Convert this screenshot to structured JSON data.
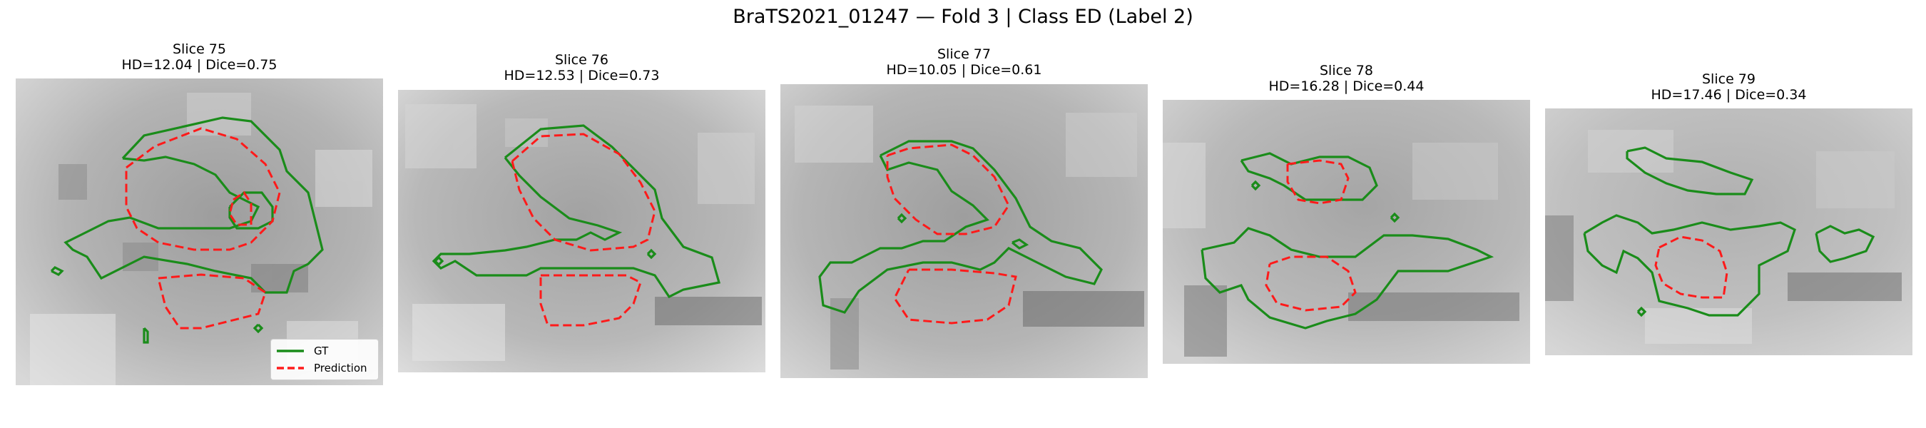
{
  "figure": {
    "title": "BraTS2021_01247 — Fold 3 | Class ED (Label 2)"
  },
  "legend": {
    "gt_label": "GT",
    "pred_label": "Prediction"
  },
  "colors": {
    "gt": "#1a8c1a",
    "prediction": "#ff1a1a"
  },
  "panels": [
    {
      "slice": "Slice 75",
      "metrics": "HD=12.04 | Dice=0.75"
    },
    {
      "slice": "Slice 76",
      "metrics": "HD=12.53 | Dice=0.73"
    },
    {
      "slice": "Slice 77",
      "metrics": "HD=10.05 | Dice=0.61"
    },
    {
      "slice": "Slice 78",
      "metrics": "HD=16.28 | Dice=0.44"
    },
    {
      "slice": "Slice 79",
      "metrics": "HD=17.46 | Dice=0.34"
    }
  ]
}
